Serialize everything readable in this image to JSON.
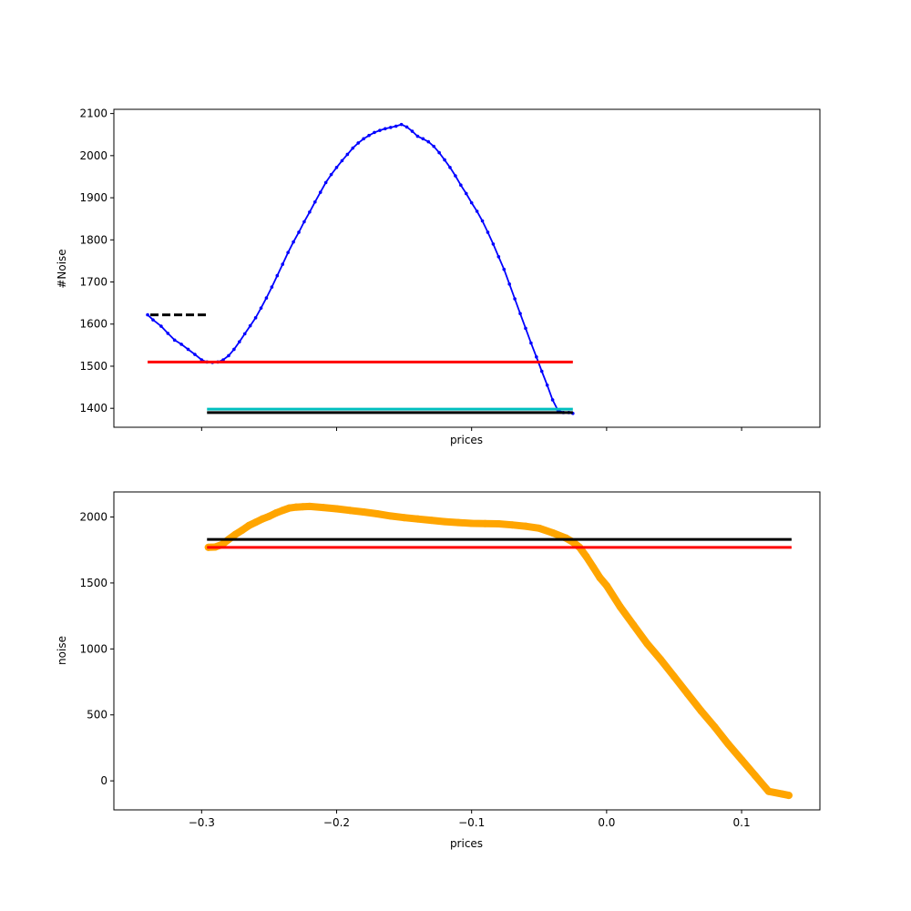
{
  "chart_data": [
    {
      "type": "line",
      "title": "",
      "xlabel": "prices",
      "ylabel": "#Noise",
      "xlim": [
        -0.365,
        0.158
      ],
      "ylim": [
        1355,
        2110
      ],
      "xticks": [
        -0.3,
        -0.2,
        -0.1,
        0.0,
        0.1
      ],
      "xtick_labels_visible": false,
      "yticks": [
        1400,
        1500,
        1600,
        1700,
        1800,
        1900,
        2000,
        2100
      ],
      "ytick_labels": [
        "1400",
        "1500",
        "1600",
        "1700",
        "1800",
        "1900",
        "2000",
        "2100"
      ],
      "grid": false,
      "series": [
        {
          "kind": "curve-with-markers",
          "color": "#0000ff",
          "x": [
            -0.34,
            -0.336,
            -0.33,
            -0.325,
            -0.32,
            -0.315,
            -0.31,
            -0.305,
            -0.3,
            -0.296,
            -0.292,
            -0.288,
            -0.284,
            -0.28,
            -0.276,
            -0.272,
            -0.268,
            -0.264,
            -0.26,
            -0.256,
            -0.252,
            -0.248,
            -0.244,
            -0.24,
            -0.236,
            -0.232,
            -0.228,
            -0.224,
            -0.22,
            -0.216,
            -0.212,
            -0.208,
            -0.204,
            -0.2,
            -0.196,
            -0.192,
            -0.188,
            -0.184,
            -0.18,
            -0.176,
            -0.172,
            -0.168,
            -0.164,
            -0.16,
            -0.156,
            -0.152,
            -0.148,
            -0.144,
            -0.14,
            -0.136,
            -0.132,
            -0.128,
            -0.124,
            -0.12,
            -0.116,
            -0.112,
            -0.108,
            -0.104,
            -0.1,
            -0.096,
            -0.092,
            -0.088,
            -0.084,
            -0.08,
            -0.076,
            -0.072,
            -0.068,
            -0.064,
            -0.06,
            -0.056,
            -0.052,
            -0.048,
            -0.044,
            -0.04,
            -0.036,
            -0.032,
            -0.028,
            -0.025
          ],
          "y": [
            1622,
            1610,
            1595,
            1578,
            1562,
            1552,
            1540,
            1528,
            1515,
            1510,
            1509,
            1510,
            1515,
            1525,
            1540,
            1558,
            1577,
            1596,
            1615,
            1638,
            1662,
            1688,
            1715,
            1742,
            1770,
            1795,
            1818,
            1843,
            1866,
            1890,
            1913,
            1936,
            1955,
            1972,
            1988,
            2003,
            2018,
            2030,
            2040,
            2048,
            2055,
            2060,
            2064,
            2067,
            2070,
            2074,
            2068,
            2058,
            2046,
            2040,
            2033,
            2022,
            2007,
            1990,
            1972,
            1952,
            1930,
            1910,
            1888,
            1868,
            1845,
            1818,
            1790,
            1760,
            1730,
            1695,
            1660,
            1625,
            1590,
            1555,
            1522,
            1488,
            1455,
            1420,
            1395,
            1390,
            1390,
            1388
          ]
        },
        {
          "kind": "hline",
          "color": "#ff0000",
          "y": 1510,
          "xmin": -0.34,
          "xmax": -0.025,
          "style": "solid"
        },
        {
          "kind": "hline",
          "color": "#00bfbf",
          "y": 1398,
          "xmin": -0.296,
          "xmax": -0.025,
          "style": "solid"
        },
        {
          "kind": "hline",
          "color": "#000000",
          "y": 1390,
          "xmin": -0.296,
          "xmax": -0.025,
          "style": "solid"
        },
        {
          "kind": "hline",
          "color": "#000000",
          "y": 1622,
          "xmin": -0.338,
          "xmax": -0.296,
          "style": "dashed"
        }
      ]
    },
    {
      "type": "scatter",
      "title": "",
      "xlabel": "prices",
      "ylabel": "noise",
      "xlim": [
        -0.365,
        0.158
      ],
      "ylim": [
        -220,
        2190
      ],
      "xticks": [
        -0.3,
        -0.2,
        -0.1,
        0.0,
        0.1
      ],
      "xtick_labels": [
        "−0.3",
        "−0.2",
        "−0.1",
        "0.0",
        "0.1"
      ],
      "xtick_labels_visible": true,
      "yticks": [
        0,
        500,
        1000,
        1500,
        2000
      ],
      "ytick_labels": [
        "0",
        "500",
        "1000",
        "1500",
        "2000"
      ],
      "grid": false,
      "series": [
        {
          "kind": "thick-points",
          "color": "#ffa500",
          "x": [
            -0.295,
            -0.29,
            -0.285,
            -0.28,
            -0.275,
            -0.27,
            -0.265,
            -0.26,
            -0.255,
            -0.25,
            -0.245,
            -0.24,
            -0.235,
            -0.23,
            -0.225,
            -0.22,
            -0.21,
            -0.2,
            -0.19,
            -0.18,
            -0.17,
            -0.16,
            -0.15,
            -0.14,
            -0.13,
            -0.12,
            -0.11,
            -0.1,
            -0.09,
            -0.08,
            -0.07,
            -0.06,
            -0.05,
            -0.04,
            -0.03,
            -0.025,
            -0.02,
            -0.015,
            -0.01,
            -0.005,
            0.0,
            0.01,
            0.02,
            0.03,
            0.04,
            0.05,
            0.06,
            0.07,
            0.08,
            0.09,
            0.1,
            0.11,
            0.12,
            0.13,
            0.135
          ],
          "y": [
            1770,
            1772,
            1790,
            1830,
            1868,
            1900,
            1935,
            1960,
            1985,
            2005,
            2030,
            2050,
            2068,
            2075,
            2078,
            2080,
            2072,
            2062,
            2050,
            2038,
            2024,
            2008,
            1995,
            1985,
            1975,
            1965,
            1958,
            1952,
            1950,
            1948,
            1940,
            1930,
            1915,
            1880,
            1840,
            1810,
            1770,
            1700,
            1620,
            1540,
            1480,
            1320,
            1180,
            1040,
            920,
            790,
            660,
            530,
            410,
            280,
            160,
            40,
            -80,
            -100,
            -110
          ]
        },
        {
          "kind": "hline",
          "color": "#000000",
          "y": 1830,
          "xmin": -0.296,
          "xmax": 0.137,
          "style": "solid"
        },
        {
          "kind": "hline",
          "color": "#ff0000",
          "y": 1770,
          "xmin": -0.296,
          "xmax": 0.137,
          "style": "solid"
        }
      ]
    }
  ]
}
